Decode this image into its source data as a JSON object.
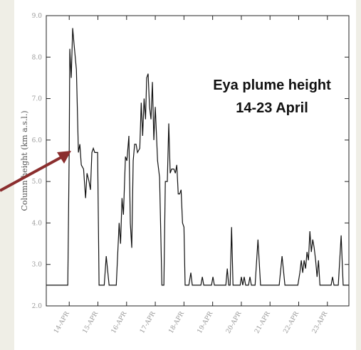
{
  "chart_data": {
    "type": "line",
    "title": "Eya plume height",
    "subtitle": "14-23 April",
    "ylabel": "Column height (km a.s.l.)",
    "xlim": [
      13.2,
      23.75
    ],
    "ylim": [
      2,
      9
    ],
    "xticks": [
      {
        "value": 14,
        "label": "14-APR"
      },
      {
        "value": 15,
        "label": "15-APR"
      },
      {
        "value": 16,
        "label": "16-APR"
      },
      {
        "value": 17,
        "label": "17-APR"
      },
      {
        "value": 18,
        "label": "18-APR"
      },
      {
        "value": 19,
        "label": "19-APR"
      },
      {
        "value": 20,
        "label": "20-APR"
      },
      {
        "value": 21,
        "label": "21-APR"
      },
      {
        "value": 22,
        "label": "22-APR"
      },
      {
        "value": 23,
        "label": "23-APR"
      }
    ],
    "yticks": [
      {
        "value": 2,
        "label": "2.0"
      },
      {
        "value": 3,
        "label": "3.0"
      },
      {
        "value": 4,
        "label": "4.0"
      },
      {
        "value": 5,
        "label": "5.0"
      },
      {
        "value": 6,
        "label": "6.0"
      },
      {
        "value": 7,
        "label": "7.0"
      },
      {
        "value": 8,
        "label": "8.0"
      },
      {
        "value": 9,
        "label": "9.0"
      }
    ],
    "series": [
      {
        "color": "#111111",
        "x": [
          13.21,
          13.95,
          14.0,
          14.02,
          14.07,
          14.12,
          14.17,
          14.25,
          14.32,
          14.37,
          14.42,
          14.5,
          14.57,
          14.62,
          14.69,
          14.74,
          14.79,
          14.84,
          14.89,
          14.94,
          14.99,
          15.04,
          15.22,
          15.29,
          15.39,
          15.64,
          15.74,
          15.79,
          15.84,
          15.89,
          15.96,
          16.01,
          16.08,
          16.13,
          16.18,
          16.23,
          16.28,
          16.33,
          16.38,
          16.46,
          16.51,
          16.56,
          16.61,
          16.66,
          16.7,
          16.75,
          16.8,
          16.85,
          16.9,
          16.95,
          17.0,
          17.08,
          17.15,
          17.23,
          17.3,
          17.35,
          17.42,
          17.47,
          17.52,
          17.57,
          17.65,
          17.7,
          17.75,
          17.8,
          17.85,
          17.9,
          17.95,
          18.0,
          18.04,
          18.17,
          18.24,
          18.29,
          18.59,
          18.64,
          18.69,
          18.96,
          19.01,
          19.06,
          19.46,
          19.51,
          19.56,
          19.61,
          19.66,
          19.71,
          19.96,
          20.0,
          20.05,
          20.1,
          20.15,
          20.25,
          20.3,
          20.35,
          20.48,
          20.58,
          20.67,
          21.32,
          21.42,
          21.52,
          21.97,
          22.04,
          22.09,
          22.14,
          22.19,
          22.24,
          22.29,
          22.34,
          22.39,
          22.44,
          22.49,
          22.54,
          22.59,
          22.64,
          22.69,
          22.74,
          23.13,
          23.18,
          23.23,
          23.38,
          23.48,
          23.55,
          23.75
        ],
        "values": [
          2.5,
          2.5,
          5.8,
          8.2,
          7.5,
          8.7,
          8.3,
          7.7,
          5.7,
          5.9,
          5.4,
          5.3,
          4.6,
          5.2,
          5.0,
          4.8,
          5.7,
          5.8,
          5.7,
          5.7,
          5.7,
          2.5,
          2.5,
          3.2,
          2.5,
          2.5,
          4.0,
          3.5,
          4.6,
          4.2,
          5.6,
          5.5,
          6.1,
          4.0,
          3.4,
          5.5,
          5.9,
          5.9,
          5.7,
          5.8,
          6.9,
          6.1,
          7.0,
          6.5,
          7.5,
          7.6,
          6.8,
          6.5,
          7.4,
          6.0,
          6.8,
          5.5,
          5.1,
          2.5,
          2.5,
          5.0,
          5.0,
          6.4,
          5.2,
          5.3,
          5.3,
          5.2,
          5.4,
          4.7,
          4.7,
          4.8,
          4.0,
          3.9,
          2.5,
          2.5,
          2.8,
          2.5,
          2.5,
          2.7,
          2.5,
          2.5,
          2.7,
          2.5,
          2.5,
          2.9,
          2.5,
          2.5,
          3.9,
          2.5,
          2.5,
          2.7,
          2.5,
          2.7,
          2.5,
          2.5,
          2.7,
          2.5,
          2.5,
          3.6,
          2.5,
          2.5,
          3.2,
          2.5,
          2.5,
          2.8,
          3.1,
          2.8,
          3.1,
          2.9,
          3.3,
          3.1,
          3.8,
          3.3,
          3.6,
          3.4,
          3.1,
          2.7,
          3.1,
          2.5,
          2.5,
          2.7,
          2.5,
          2.5,
          3.7,
          2.5,
          2.5
        ]
      }
    ]
  }
}
